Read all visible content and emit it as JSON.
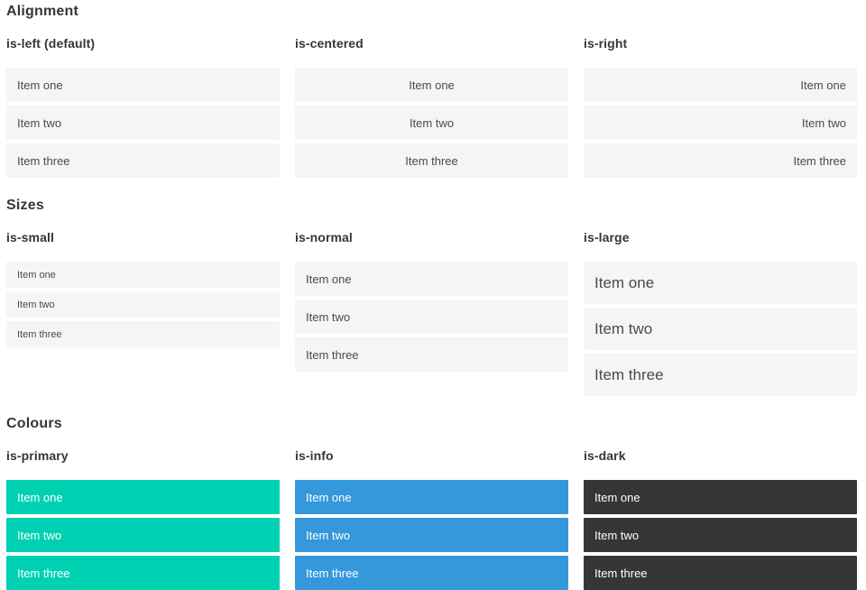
{
  "sections": [
    {
      "title": "Alignment",
      "columns": [
        {
          "subtitle": "is-left (default)",
          "variant": "is-left",
          "items": [
            "Item one",
            "Item two",
            "Item three"
          ]
        },
        {
          "subtitle": "is-centered",
          "variant": "is-centered",
          "items": [
            "Item one",
            "Item two",
            "Item three"
          ]
        },
        {
          "subtitle": "is-right",
          "variant": "is-right",
          "items": [
            "Item one",
            "Item two",
            "Item three"
          ]
        }
      ]
    },
    {
      "title": "Sizes",
      "columns": [
        {
          "subtitle": "is-small",
          "variant": "is-small",
          "items": [
            "Item one",
            "Item two",
            "Item three"
          ]
        },
        {
          "subtitle": "is-normal",
          "variant": "is-normal",
          "items": [
            "Item one",
            "Item two",
            "Item three"
          ]
        },
        {
          "subtitle": "is-large",
          "variant": "is-large",
          "items": [
            "Item one",
            "Item two",
            "Item three"
          ]
        }
      ]
    },
    {
      "title": "Colours",
      "columns": [
        {
          "subtitle": "is-primary",
          "variant": "is-primary",
          "items": [
            "Item one",
            "Item two",
            "Item three"
          ]
        },
        {
          "subtitle": "is-info",
          "variant": "is-info",
          "items": [
            "Item one",
            "Item two",
            "Item three"
          ]
        },
        {
          "subtitle": "is-dark",
          "variant": "is-dark",
          "items": [
            "Item one",
            "Item two",
            "Item three"
          ]
        }
      ]
    }
  ],
  "colors": {
    "item_bg": "#f5f5f5",
    "item_text": "#4a4a4a",
    "heading_text": "#363636",
    "primary": "#00d1b2",
    "info": "#3498db",
    "dark": "#363636",
    "colored_item_text": "#ffffff"
  }
}
